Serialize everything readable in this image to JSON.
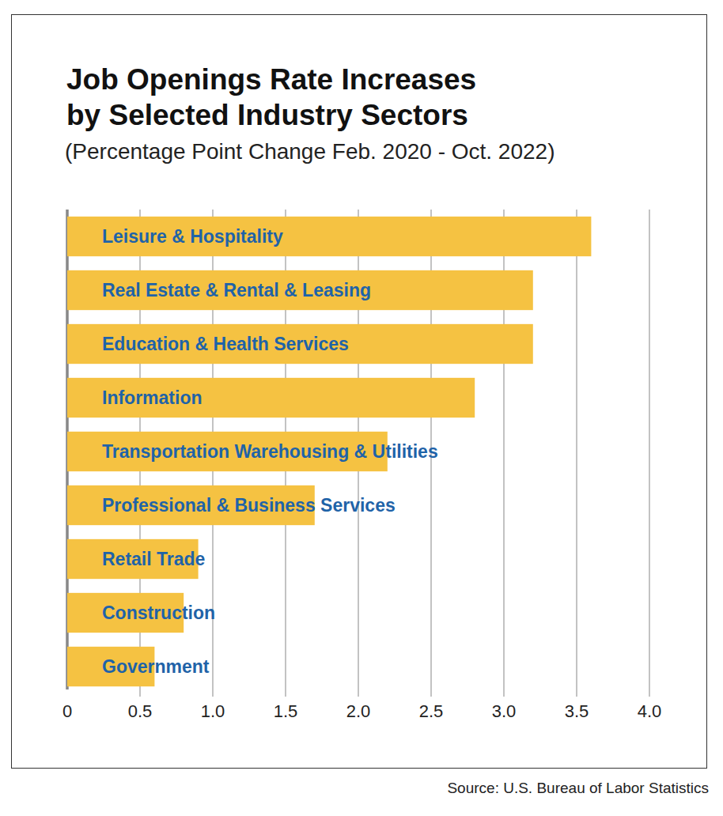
{
  "chart_data": {
    "type": "bar",
    "orientation": "horizontal",
    "title": "Job Openings Rate Increases by Selected Industry Sectors",
    "subtitle": "(Percentage Point Change Feb. 2020 - Oct. 2022)",
    "source": "Source: U.S. Bureau of Labor Statistics",
    "categories": [
      "Leisure & Hospitality",
      "Real Estate & Rental & Leasing",
      "Education & Health Services",
      "Information",
      "Transportation Warehousing & Utilities",
      "Professional & Business Services",
      "Retail Trade",
      "Construction",
      "Government"
    ],
    "values": [
      3.6,
      3.2,
      3.2,
      2.8,
      2.2,
      1.7,
      0.9,
      0.8,
      0.6
    ],
    "color": "#f5c242",
    "xlim": [
      0,
      4
    ],
    "xticks": [
      0,
      0.5,
      {
        "value": 1,
        "label": "1.0"
      },
      1.5,
      {
        "value": 2,
        "label": "2.0"
      },
      2.5,
      {
        "value": 3,
        "label": "3.0"
      },
      3.5,
      {
        "value": 4,
        "label": "4.0"
      }
    ],
    "grid": true
  }
}
